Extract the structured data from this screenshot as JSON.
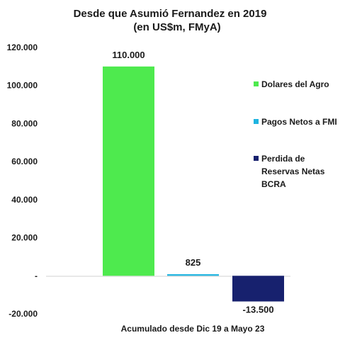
{
  "chart_data": {
    "type": "bar",
    "title_lines": [
      "Desde  que Asumió  Fernandez en 2019",
      "(en US$m, FMyA)"
    ],
    "xlabel": "Acumulado desde Dic 19 a Mayo 23",
    "ylabel": "",
    "ylim": [
      -20000,
      120000
    ],
    "yticks": [
      120000,
      100000,
      80000,
      60000,
      40000,
      20000,
      0,
      -20000
    ],
    "ytick_labels": [
      "120.000",
      "100.000",
      "80.000",
      "60.000",
      "40.000",
      "20.000",
      "-",
      "-20.000"
    ],
    "grid": false,
    "legend_position": "right",
    "series": [
      {
        "name": "Dolares del Agro",
        "legend_lines": [
          "Dolares del Agro"
        ],
        "value": 110000,
        "label": "110.000",
        "color": "#4eea4e"
      },
      {
        "name": "Pagos Netos a FMI",
        "legend_lines": [
          "Pagos Netos a FMI"
        ],
        "value": 825,
        "label": "825",
        "color": "#1fb4e0"
      },
      {
        "name": "Perdida de Reservas Netas BCRA",
        "legend_lines": [
          "Perdida de",
          "Reservas Netas",
          "BCRA"
        ],
        "value": -13500,
        "label": "-13.500",
        "color": "#17216e"
      }
    ]
  }
}
